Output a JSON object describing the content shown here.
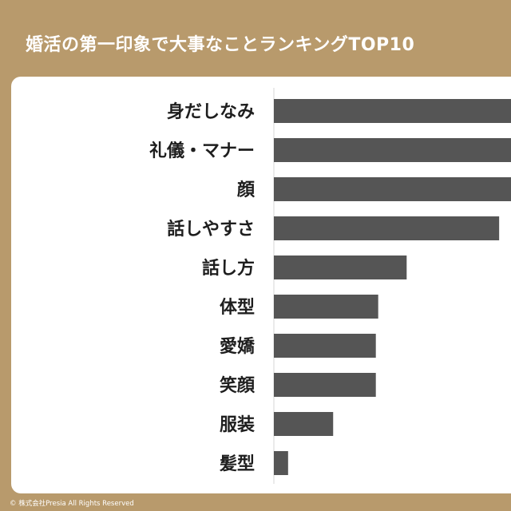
{
  "chart_data": {
    "type": "bar",
    "orientation": "horizontal",
    "title": "婚活の第一印象で大事なことランキングTOP10",
    "categories": [
      "身だしなみ",
      "礼儀・マナー",
      "顔",
      "話しやすさ",
      "話し方",
      "体型",
      "愛嬌",
      "笑顔",
      "服装",
      "髪型"
    ],
    "values": [
      100,
      100,
      100,
      95,
      56,
      44,
      43,
      43,
      25,
      6
    ],
    "xlim": [
      0,
      100
    ],
    "grid": false,
    "legend": "none",
    "colors": {
      "bar": "#555555",
      "background": "#b89a6c",
      "panel": "#ffffff",
      "axis": "#d6d6d6"
    }
  },
  "footer": {
    "copyright": "© 株式会社Presia All Rights Reserved"
  }
}
